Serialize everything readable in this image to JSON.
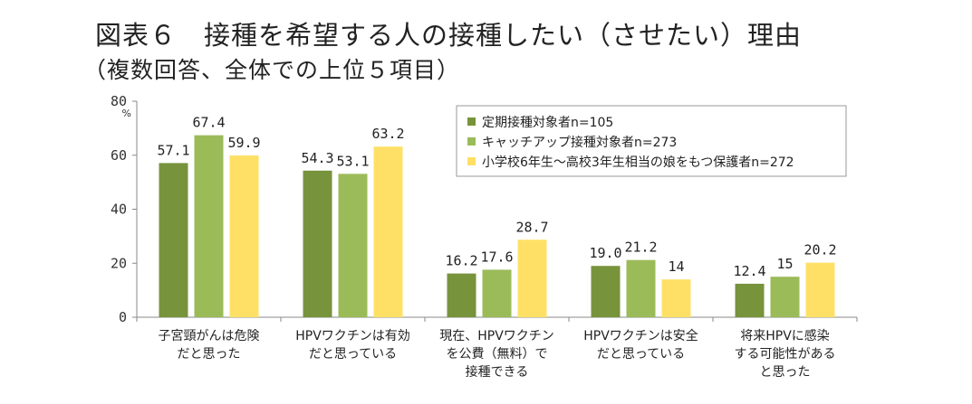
{
  "title": "図表６　接種を希望する人の接種したい（させたい）理由",
  "subtitle": "（複数回答、全体での上位５項目）",
  "chart_data": {
    "type": "bar",
    "yunit": "%",
    "ylim": [
      0,
      80
    ],
    "yticks": [
      "0",
      "20",
      "40",
      "60",
      "80"
    ],
    "legend_position": "top-right",
    "categories": [
      [
        "子宮頸がんは危険",
        "だと思った"
      ],
      [
        "HPVワクチンは有効",
        "だと思っている"
      ],
      [
        "現在、HPVワクチン",
        "を公費（無料）で",
        "接種できる"
      ],
      [
        "HPVワクチンは安全",
        "だと思っている"
      ],
      [
        "将来HPVに感染",
        "する可能性がある",
        "と思った"
      ]
    ],
    "series": [
      {
        "name": "定期接種対象者n=105",
        "color": "#77933C",
        "values": [
          57.1,
          54.3,
          16.2,
          19.0,
          12.4
        ],
        "labels": [
          "57.1",
          "54.3",
          "16.2",
          "19.0",
          "12.4"
        ]
      },
      {
        "name": "キャッチアップ接種対象者n=273",
        "color": "#9BBB59",
        "values": [
          67.4,
          53.1,
          17.6,
          21.2,
          15
        ],
        "labels": [
          "67.4",
          "53.1",
          "17.6",
          "21.2",
          "15"
        ]
      },
      {
        "name": "小学校6年生～高校3年生相当の娘をもつ保護者n=272",
        "color": "#FFE066",
        "values": [
          59.9,
          63.2,
          28.7,
          14,
          20.2
        ],
        "labels": [
          "59.9",
          "63.2",
          "28.7",
          "14",
          "20.2"
        ]
      }
    ]
  }
}
